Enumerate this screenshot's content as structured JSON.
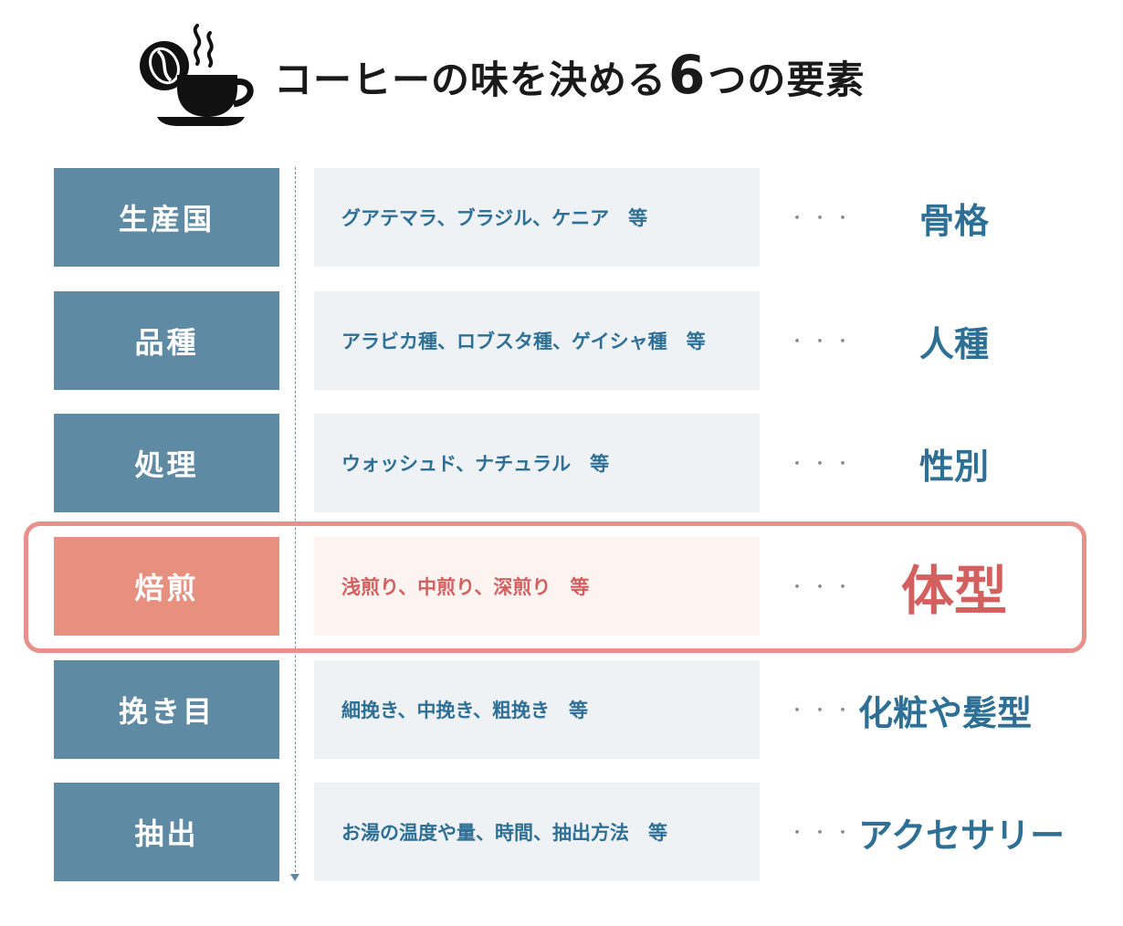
{
  "header": {
    "icon": "coffee-cup-with-bean-icon",
    "title_prefix": "コーヒーの味を決める",
    "title_number": "6",
    "title_suffix": "つの要素"
  },
  "separator": "・・・",
  "colors": {
    "label_bg": "#5f8aa3",
    "desc_bg": "#eef2f5",
    "text_blue": "#2e6f96",
    "highlight_label_bg": "#e89080",
    "highlight_text": "#d35f5f",
    "highlight_border": "#e8908a"
  },
  "rows": [
    {
      "label": "生産国",
      "desc": "グアテマラ、ブラジル、ケニア　等",
      "analogy": "骨格"
    },
    {
      "label": "品種",
      "desc": "アラビカ種、ロブスタ種、ゲイシャ種　等",
      "analogy": "人種"
    },
    {
      "label": "処理",
      "desc": "ウォッシュド、ナチュラル　等",
      "analogy": "性別"
    },
    {
      "label": "焙煎",
      "desc": "浅煎り、中煎り、深煎り　等",
      "analogy": "体型",
      "highlighted": true
    },
    {
      "label": "挽き目",
      "desc": "細挽き、中挽き、粗挽き　等",
      "analogy": "化粧や髪型"
    },
    {
      "label": "抽出",
      "desc": "お湯の温度や量、時間、抽出方法　等",
      "analogy": "アクセサリー"
    }
  ]
}
